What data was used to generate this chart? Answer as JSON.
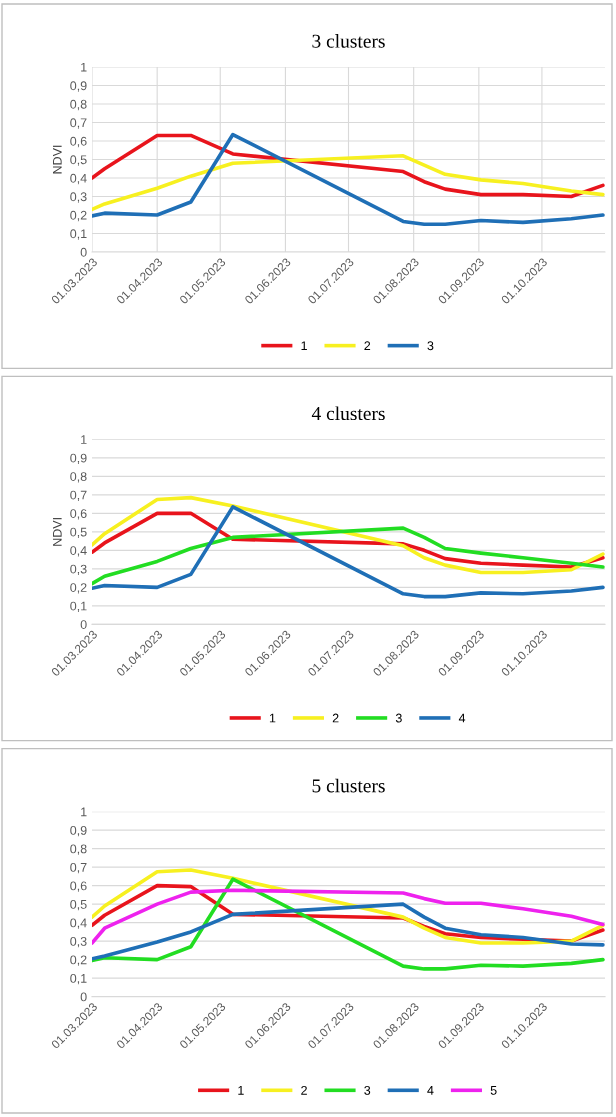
{
  "chart_data": [
    {
      "type": "line",
      "title": "3 clusters",
      "ylabel": "NDVI",
      "grid": true,
      "legend": "bottom",
      "line_style": "solid",
      "x": [
        "2023-03-01",
        "2023-03-07",
        "2023-04-01",
        "2023-04-17",
        "2023-05-07",
        "2023-07-27",
        "2023-08-06",
        "2023-08-16",
        "2023-09-02",
        "2023-09-22",
        "2023-10-15",
        "2023-10-30"
      ],
      "xlim": [
        "2023-03-01",
        "2023-10-31"
      ],
      "xticks": [
        {
          "value": "2023-03-01",
          "label": "01.03.2023"
        },
        {
          "value": "2023-04-01",
          "label": "01.04.2023"
        },
        {
          "value": "2023-05-01",
          "label": "01.05.2023"
        },
        {
          "value": "2023-06-01",
          "label": "01.06.2023"
        },
        {
          "value": "2023-07-01",
          "label": "01.07.2023"
        },
        {
          "value": "2023-08-01",
          "label": "01.08.2023"
        },
        {
          "value": "2023-09-01",
          "label": "01.09.2023"
        },
        {
          "value": "2023-10-01",
          "label": "01.10.2023"
        }
      ],
      "ylim": [
        0,
        1
      ],
      "yticks": [
        0,
        {
          "value": 0.1,
          "label": "0,1"
        },
        {
          "value": 0.2,
          "label": "0,2"
        },
        {
          "value": 0.3,
          "label": "0,3"
        },
        {
          "value": 0.4,
          "label": "0,4"
        },
        {
          "value": 0.5,
          "label": "0,5"
        },
        {
          "value": 0.6,
          "label": "0,6"
        },
        {
          "value": 0.7,
          "label": "0,7"
        },
        {
          "value": 0.8,
          "label": "0,8"
        },
        {
          "value": 0.9,
          "label": "0,9"
        },
        1
      ],
      "series": [
        {
          "name": "1",
          "color": "#e8141c",
          "values": [
            0.4,
            0.45,
            0.63,
            0.63,
            0.53,
            0.435,
            0.38,
            0.34,
            0.31,
            0.31,
            0.3,
            0.36
          ]
        },
        {
          "name": "2",
          "color": "#f7f020",
          "values": [
            0.23,
            0.26,
            0.345,
            0.41,
            0.48,
            0.52,
            0.47,
            0.42,
            0.39,
            0.37,
            0.33,
            0.31
          ]
        },
        {
          "name": "3",
          "color": "#1f6fb6",
          "values": [
            0.195,
            0.21,
            0.2,
            0.27,
            0.635,
            0.165,
            0.15,
            0.15,
            0.17,
            0.16,
            0.18,
            0.2
          ]
        }
      ]
    },
    {
      "type": "line",
      "title": "4 clusters",
      "ylabel": "NDVI",
      "grid": "y",
      "legend": "bottom",
      "line_style": "solid",
      "x": [
        "2023-03-01",
        "2023-03-07",
        "2023-04-01",
        "2023-04-17",
        "2023-05-07",
        "2023-07-27",
        "2023-08-06",
        "2023-08-16",
        "2023-09-02",
        "2023-09-22",
        "2023-10-15",
        "2023-10-30"
      ],
      "xlim": [
        "2023-03-01",
        "2023-10-31"
      ],
      "xticks": [
        {
          "value": "2023-03-01",
          "label": "01.03.2023"
        },
        {
          "value": "2023-04-01",
          "label": "01.04.2023"
        },
        {
          "value": "2023-05-01",
          "label": "01.05.2023"
        },
        {
          "value": "2023-06-01",
          "label": "01.06.2023"
        },
        {
          "value": "2023-07-01",
          "label": "01.07.2023"
        },
        {
          "value": "2023-08-01",
          "label": "01.08.2023"
        },
        {
          "value": "2023-09-01",
          "label": "01.09.2023"
        },
        {
          "value": "2023-10-01",
          "label": "01.10.2023"
        }
      ],
      "ylim": [
        0,
        1
      ],
      "yticks": [
        0,
        {
          "value": 0.1,
          "label": "0,1"
        },
        {
          "value": 0.2,
          "label": "0,2"
        },
        {
          "value": 0.3,
          "label": "0,3"
        },
        {
          "value": 0.4,
          "label": "0,4"
        },
        {
          "value": 0.5,
          "label": "0,5"
        },
        {
          "value": 0.6,
          "label": "0,6"
        },
        {
          "value": 0.7,
          "label": "0,7"
        },
        {
          "value": 0.8,
          "label": "0,8"
        },
        {
          "value": 0.9,
          "label": "0,9"
        },
        1
      ],
      "series": [
        {
          "name": "1",
          "color": "#e8141c",
          "values": [
            0.39,
            0.44,
            0.6,
            0.6,
            0.46,
            0.435,
            0.4,
            0.355,
            0.33,
            0.32,
            0.31,
            0.36
          ]
        },
        {
          "name": "2",
          "color": "#f7f020",
          "values": [
            0.43,
            0.49,
            0.675,
            0.685,
            0.64,
            0.425,
            0.36,
            0.32,
            0.28,
            0.28,
            0.295,
            0.38
          ]
        },
        {
          "name": "3",
          "color": "#22dd22",
          "values": [
            0.22,
            0.26,
            0.34,
            0.41,
            0.47,
            0.52,
            0.47,
            0.41,
            0.385,
            0.36,
            0.33,
            0.31
          ]
        },
        {
          "name": "4",
          "color": "#1f6fb6",
          "values": [
            0.195,
            0.21,
            0.2,
            0.27,
            0.635,
            0.165,
            0.15,
            0.15,
            0.17,
            0.165,
            0.18,
            0.2
          ]
        }
      ]
    },
    {
      "type": "line",
      "title": "5 clusters",
      "grid": "y",
      "legend": "bottom",
      "line_style": "solid",
      "x": [
        "2023-03-01",
        "2023-03-07",
        "2023-04-01",
        "2023-04-17",
        "2023-05-07",
        "2023-07-27",
        "2023-08-06",
        "2023-08-16",
        "2023-09-02",
        "2023-09-22",
        "2023-10-15",
        "2023-10-30"
      ],
      "xlim": [
        "2023-03-01",
        "2023-10-31"
      ],
      "xticks": [
        {
          "value": "2023-03-01",
          "label": "01.03.2023"
        },
        {
          "value": "2023-04-01",
          "label": "01.04.2023"
        },
        {
          "value": "2023-05-01",
          "label": "01.05.2023"
        },
        {
          "value": "2023-06-01",
          "label": "01.06.2023"
        },
        {
          "value": "2023-07-01",
          "label": "01.07.2023"
        },
        {
          "value": "2023-08-01",
          "label": "01.08.2023"
        },
        {
          "value": "2023-09-01",
          "label": "01.09.2023"
        },
        {
          "value": "2023-10-01",
          "label": "01.10.2023"
        }
      ],
      "ylim": [
        0,
        1
      ],
      "yticks": [
        0,
        {
          "value": 0.1,
          "label": "0,1"
        },
        {
          "value": 0.2,
          "label": "0,2"
        },
        {
          "value": 0.3,
          "label": "0,3"
        },
        {
          "value": 0.4,
          "label": "0,4"
        },
        {
          "value": 0.5,
          "label": "0,5"
        },
        {
          "value": 0.6,
          "label": "0,6"
        },
        {
          "value": 0.7,
          "label": "0,7"
        },
        {
          "value": 0.8,
          "label": "0,8"
        },
        {
          "value": 0.9,
          "label": "0,9"
        },
        1
      ],
      "series": [
        {
          "name": "1",
          "color": "#e8141c",
          "values": [
            0.385,
            0.44,
            0.6,
            0.595,
            0.445,
            0.425,
            0.38,
            0.34,
            0.32,
            0.31,
            0.3,
            0.36
          ]
        },
        {
          "name": "2",
          "color": "#f7f020",
          "values": [
            0.43,
            0.49,
            0.675,
            0.685,
            0.64,
            0.43,
            0.37,
            0.32,
            0.29,
            0.29,
            0.3,
            0.385
          ]
        },
        {
          "name": "3",
          "color": "#22dd22",
          "values": [
            0.195,
            0.21,
            0.2,
            0.27,
            0.635,
            0.165,
            0.15,
            0.15,
            0.17,
            0.165,
            0.18,
            0.2
          ]
        },
        {
          "name": "4",
          "color": "#1f6fb6",
          "values": [
            0.205,
            0.22,
            0.295,
            0.35,
            0.445,
            0.5,
            0.43,
            0.37,
            0.335,
            0.32,
            0.285,
            0.28
          ]
        },
        {
          "name": "5",
          "color": "#ee22ee",
          "values": [
            0.29,
            0.37,
            0.5,
            0.565,
            0.575,
            0.56,
            0.53,
            0.505,
            0.505,
            0.475,
            0.435,
            0.39
          ]
        }
      ]
    }
  ]
}
